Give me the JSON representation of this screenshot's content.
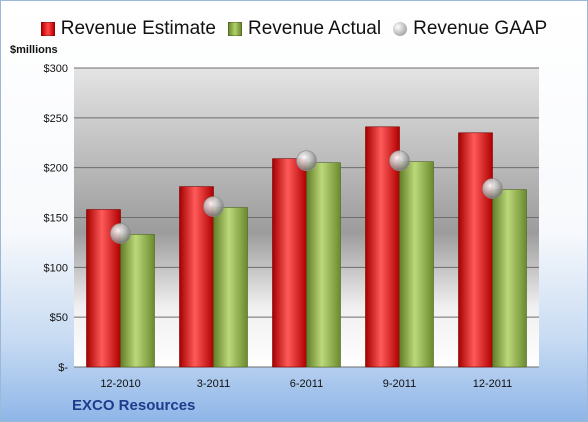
{
  "chart_data": {
    "type": "bar",
    "ylabel": "$millions",
    "categories": [
      "12-2010",
      "3-2011",
      "6-2011",
      "9-2011",
      "12-2011"
    ],
    "series": [
      {
        "name": "Revenue Estimate",
        "kind": "bar",
        "color": "#d42020",
        "values": [
          158,
          181,
          209,
          241,
          235
        ]
      },
      {
        "name": "Revenue Actual",
        "kind": "bar",
        "color": "#9bbb59",
        "values": [
          133,
          160,
          205,
          206,
          178
        ]
      },
      {
        "name": "Revenue GAAP",
        "kind": "marker",
        "color": "#b0b0b0",
        "values": [
          134,
          161,
          207,
          207,
          179
        ]
      }
    ],
    "ylim": [
      0,
      300
    ],
    "yticks": [
      0,
      50,
      100,
      150,
      200,
      250,
      300
    ],
    "ytick_labels": [
      "$-",
      "$50",
      "$100",
      "$150",
      "$200",
      "$250",
      "$300"
    ],
    "grid": true,
    "legend_position": "top",
    "footer": "EXCO Resources"
  }
}
